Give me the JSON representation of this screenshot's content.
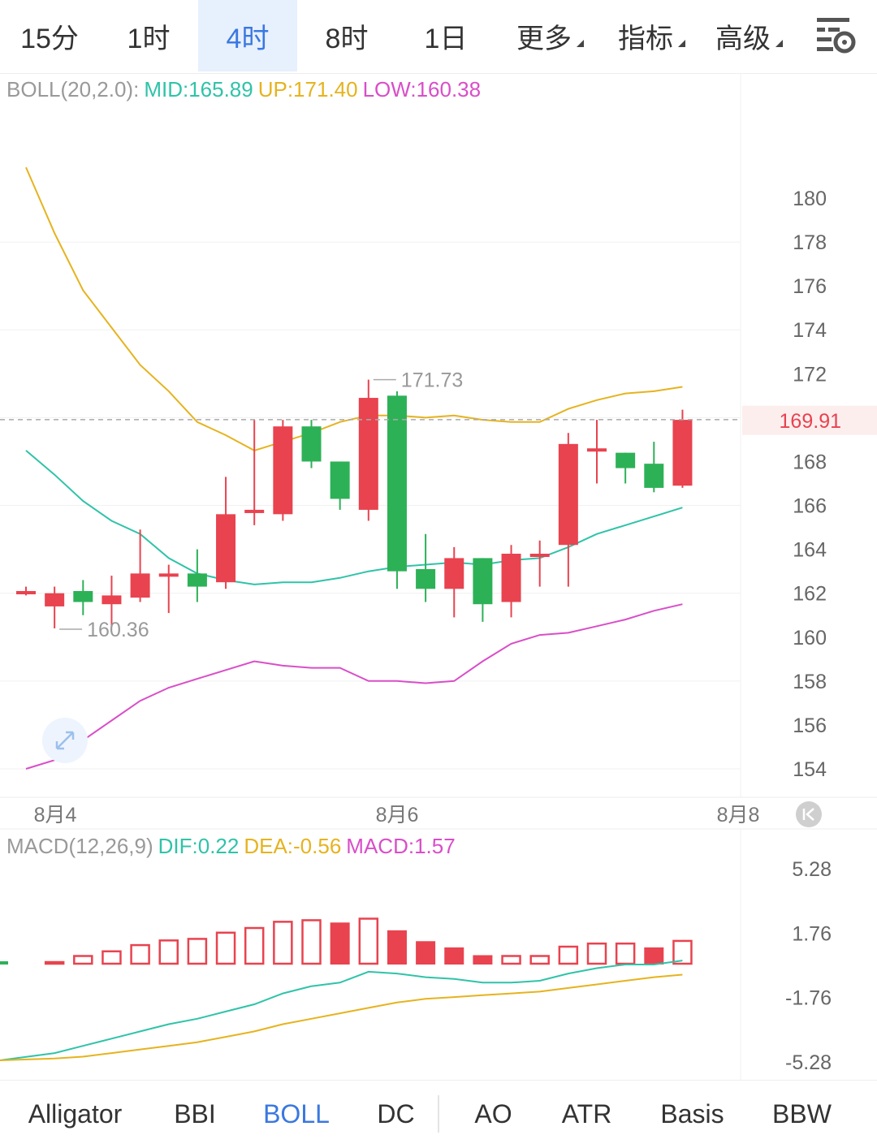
{
  "tabs": [
    {
      "label": "15分",
      "active": false,
      "caret": false
    },
    {
      "label": "1时",
      "active": false,
      "caret": false
    },
    {
      "label": "4时",
      "active": true,
      "caret": false
    },
    {
      "label": "8时",
      "active": false,
      "caret": false
    },
    {
      "label": "1日",
      "active": false,
      "caret": false
    },
    {
      "label": "更多",
      "active": false,
      "caret": true
    },
    {
      "label": "指标",
      "active": false,
      "caret": true
    },
    {
      "label": "高级",
      "active": false,
      "caret": true
    }
  ],
  "boll_legend": {
    "name": "BOLL(20,2.0):",
    "mid": "MID:165.89",
    "up": "UP:171.40",
    "low": "LOW:160.38"
  },
  "macd_legend": {
    "name": "MACD(12,26,9)",
    "dif": "DIF:0.22",
    "dea": "DEA:-0.56",
    "macd": "MACD:1.57"
  },
  "indicators": [
    {
      "label": "Alligator",
      "active": false
    },
    {
      "label": "BBI",
      "active": false
    },
    {
      "label": "BOLL",
      "active": true
    },
    {
      "label": "DC",
      "active": false
    },
    {
      "label": "AO",
      "active": false
    },
    {
      "label": "ATR",
      "active": false
    },
    {
      "label": "Basis",
      "active": false
    },
    {
      "label": "BBW",
      "active": false
    }
  ],
  "colors": {
    "up_candle": "#e8434f",
    "down_candle": "#2db157",
    "mid": "#2fc3a8",
    "upper": "#e6b31e",
    "lower": "#d94ec8",
    "accent": "#3a78e0"
  },
  "chart_data": [
    {
      "type": "candlestick",
      "title": "BOLL(20,2.0)",
      "y_ticks": [
        "180",
        "178",
        "176",
        "174",
        "172",
        "170",
        "168",
        "166",
        "164",
        "162",
        "160",
        "158",
        "156",
        "154"
      ],
      "ylim": [
        152.7,
        183.5
      ],
      "x_labels": [
        "8月4",
        "8月6",
        "8月8"
      ],
      "current_price": "169.91",
      "max_label": "171.73",
      "min_label": "160.36",
      "candles": [
        {
          "open": 162.1,
          "close": 162.1,
          "high": 162.3,
          "low": 161.9
        },
        {
          "open": 161.4,
          "close": 162.0,
          "high": 162.3,
          "low": 160.4
        },
        {
          "open": 162.1,
          "close": 161.6,
          "high": 162.6,
          "low": 161.0
        },
        {
          "open": 161.5,
          "close": 161.9,
          "high": 162.8,
          "low": 160.5
        },
        {
          "open": 161.8,
          "close": 162.9,
          "high": 164.9,
          "low": 161.6
        },
        {
          "open": 162.9,
          "close": 162.9,
          "high": 163.3,
          "low": 161.1
        },
        {
          "open": 162.9,
          "close": 162.3,
          "high": 164.0,
          "low": 161.6
        },
        {
          "open": 162.5,
          "close": 165.6,
          "high": 167.3,
          "low": 162.2
        },
        {
          "open": 165.7,
          "close": 165.8,
          "high": 169.9,
          "low": 165.1
        },
        {
          "open": 165.6,
          "close": 169.6,
          "high": 169.9,
          "low": 165.3
        },
        {
          "open": 169.6,
          "close": 168.0,
          "high": 169.9,
          "low": 167.7
        },
        {
          "open": 168.0,
          "close": 166.3,
          "high": 168.0,
          "low": 165.8
        },
        {
          "open": 165.8,
          "close": 170.9,
          "high": 171.73,
          "low": 165.3
        },
        {
          "open": 171.0,
          "close": 163.0,
          "high": 171.2,
          "low": 162.2
        },
        {
          "open": 163.1,
          "close": 162.2,
          "high": 164.7,
          "low": 161.6
        },
        {
          "open": 162.2,
          "close": 163.6,
          "high": 164.1,
          "low": 160.9
        },
        {
          "open": 163.6,
          "close": 161.5,
          "high": 163.6,
          "low": 160.7
        },
        {
          "open": 161.6,
          "close": 163.8,
          "high": 164.2,
          "low": 160.9
        },
        {
          "open": 163.8,
          "close": 163.8,
          "high": 164.4,
          "low": 162.3
        },
        {
          "open": 164.2,
          "close": 168.8,
          "high": 169.3,
          "low": 162.3
        },
        {
          "open": 168.6,
          "close": 168.6,
          "high": 169.9,
          "low": 167.0
        },
        {
          "open": 168.4,
          "close": 167.7,
          "high": 168.4,
          "low": 167.0
        },
        {
          "open": 167.9,
          "close": 166.8,
          "high": 168.9,
          "low": 166.6
        },
        {
          "open": 166.9,
          "close": 169.9,
          "high": 170.36,
          "low": 166.8
        }
      ],
      "series": [
        {
          "name": "MID",
          "values": [
            168.5,
            167.4,
            166.2,
            165.3,
            164.7,
            163.6,
            162.9,
            162.6,
            162.4,
            162.5,
            162.5,
            162.7,
            163.0,
            163.2,
            163.3,
            163.4,
            163.3,
            163.5,
            163.6,
            164.1,
            164.7,
            165.1,
            165.5,
            165.9
          ]
        },
        {
          "name": "UP",
          "values": [
            181.4,
            178.4,
            175.8,
            174.1,
            172.4,
            171.2,
            169.8,
            169.2,
            168.5,
            168.9,
            169.3,
            169.8,
            170.1,
            170.1,
            170.0,
            170.1,
            169.9,
            169.8,
            169.8,
            170.4,
            170.8,
            171.1,
            171.2,
            171.4
          ]
        },
        {
          "name": "LOW",
          "values": [
            154.0,
            154.4,
            155.3,
            156.2,
            157.1,
            157.7,
            158.1,
            158.5,
            158.9,
            158.7,
            158.6,
            158.6,
            158.0,
            158.0,
            157.9,
            158.0,
            158.9,
            159.7,
            160.1,
            160.2,
            160.5,
            160.8,
            161.2,
            161.5
          ]
        }
      ]
    },
    {
      "type": "bar",
      "title": "MACD(12,26,9)",
      "y_ticks": [
        "5.28",
        "1.76",
        "-1.76",
        "-5.28"
      ],
      "ylim": [
        -5.28,
        5.28
      ],
      "histogram": [
        0.0,
        0.2,
        0.6,
        0.9,
        1.3,
        1.6,
        1.7,
        2.1,
        2.4,
        2.8,
        2.9,
        2.7,
        3.0,
        2.2,
        1.5,
        1.1,
        0.6,
        0.6,
        0.6,
        1.2,
        1.4,
        1.4,
        1.1,
        1.57
      ],
      "series": [
        {
          "name": "DIF",
          "values": [
            -5.3,
            -4.9,
            -4.5,
            -4.1,
            -3.7,
            -3.3,
            -3.0,
            -2.6,
            -2.2,
            -1.6,
            -1.2,
            -1.0,
            -0.4,
            -0.5,
            -0.7,
            -0.8,
            -1.0,
            -1.0,
            -0.9,
            -0.5,
            -0.2,
            0.0,
            0.0,
            0.22
          ]
        },
        {
          "name": "DEA",
          "values": [
            -5.3,
            -5.2,
            -5.1,
            -4.9,
            -4.7,
            -4.5,
            -4.3,
            -4.0,
            -3.7,
            -3.3,
            -3.0,
            -2.7,
            -2.4,
            -2.1,
            -1.9,
            -1.8,
            -1.7,
            -1.6,
            -1.5,
            -1.3,
            -1.1,
            -0.9,
            -0.7,
            -0.56
          ]
        }
      ]
    }
  ]
}
